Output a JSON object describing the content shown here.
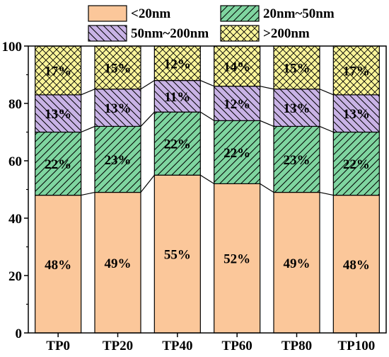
{
  "chart_data": {
    "type": "bar",
    "stacked": true,
    "categories": [
      "TP0",
      "TP20",
      "TP40",
      "TP60",
      "TP80",
      "TP100"
    ],
    "series": [
      {
        "name": "<20nm",
        "values": [
          48,
          49,
          55,
          52,
          49,
          48
        ],
        "labels": [
          "48%",
          "49%",
          "55%",
          "52%",
          "49%",
          "48%"
        ],
        "color": "#fbc79a",
        "pattern": "none"
      },
      {
        "name": "20nm~50nm",
        "values": [
          22,
          23,
          22,
          22,
          23,
          22
        ],
        "labels": [
          "22%",
          "23%",
          "22%",
          "22%",
          "23%",
          "22%"
        ],
        "color": "#7fd5a0",
        "pattern": "diagonal-forward"
      },
      {
        "name": "50nm~200nm",
        "values": [
          13,
          13,
          11,
          12,
          13,
          13
        ],
        "labels": [
          "13%",
          "13%",
          "11%",
          "12%",
          "13%",
          "13%"
        ],
        "color": "#c9b3e6",
        "pattern": "diagonal-backward"
      },
      {
        "name": ">200nm",
        "values": [
          17,
          15,
          12,
          14,
          15,
          17
        ],
        "labels": [
          "17%",
          "15%",
          "12%",
          "14%",
          "15%",
          "17%"
        ],
        "color": "#fbf59a",
        "pattern": "crosshatch"
      }
    ],
    "ylim": [
      0,
      100
    ],
    "yticks": [
      "0",
      "20",
      "40",
      "60",
      "80",
      "100"
    ],
    "connector_lines": true,
    "legend_position": "top"
  }
}
